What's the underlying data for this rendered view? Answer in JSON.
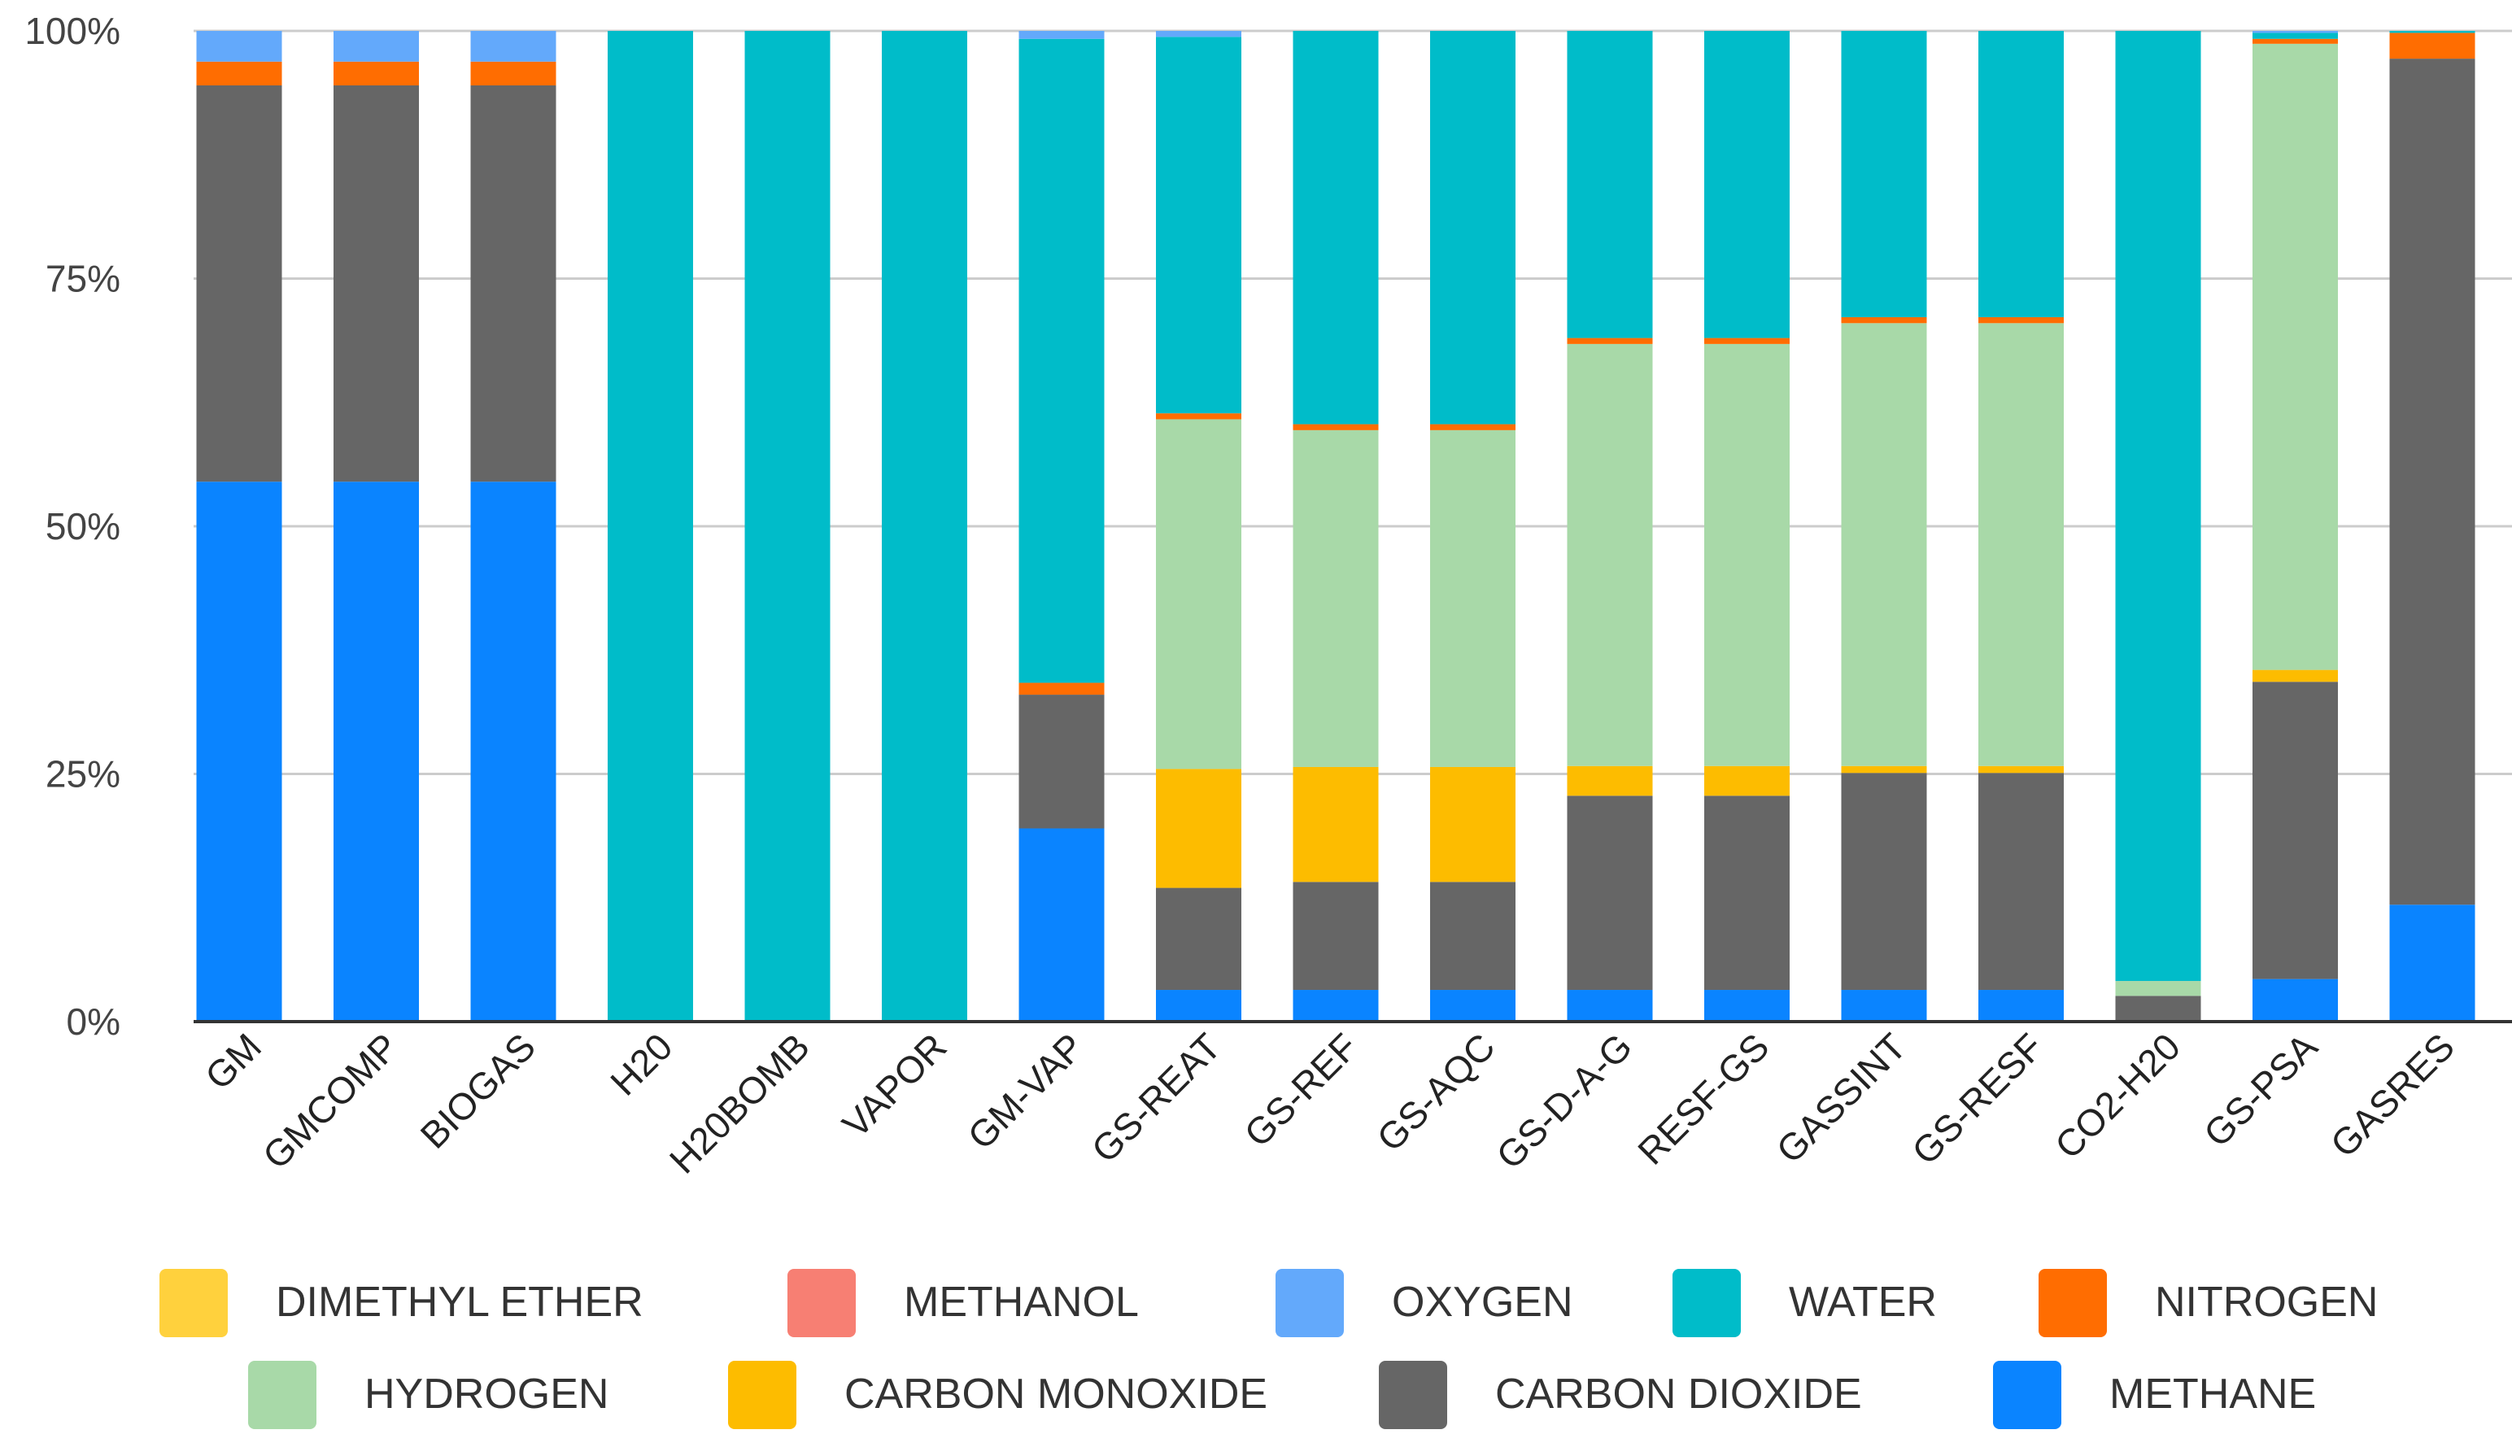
{
  "chart_data": {
    "type": "bar",
    "stacked": true,
    "normalized": true,
    "title": "",
    "xlabel": "",
    "ylabel": "",
    "ylim": [
      0,
      100
    ],
    "y_ticks": [
      0,
      25,
      50,
      75,
      100
    ],
    "y_tick_labels": [
      "0%",
      "25%",
      "50%",
      "75%",
      "100%"
    ],
    "grid": true,
    "legend_position": "bottom",
    "categories": [
      "GM",
      "GMCOMP",
      "BIOGAS",
      "H20",
      "H20BOMB",
      "VAPOR",
      "GM-VAP",
      "GS-REAT",
      "GS-REF",
      "GS-AQC",
      "GS-D-A-G",
      "RESF-GS",
      "GASSINT",
      "GS-RESF",
      "CO2-H20",
      "GS-PSA",
      "GASRES"
    ],
    "series": [
      {
        "name": "METHANE",
        "color": "#0a84ff",
        "values": [
          54.5,
          54.5,
          54.5,
          0,
          0,
          0,
          19.5,
          3.2,
          3.2,
          3.2,
          3.2,
          3.2,
          3.2,
          3.2,
          0,
          4.3,
          11.8
        ]
      },
      {
        "name": "CARBON DIOXIDE",
        "color": "#666666",
        "values": [
          40.0,
          40.0,
          40.0,
          0,
          0,
          0,
          13.5,
          10.3,
          10.9,
          10.9,
          19.6,
          19.6,
          21.9,
          21.9,
          2.6,
          30.0,
          85.4
        ]
      },
      {
        "name": "CARBON MONOXIDE",
        "color": "#fdbc00",
        "values": [
          0,
          0,
          0,
          0,
          0,
          0,
          0,
          12.0,
          11.6,
          11.6,
          3.0,
          3.0,
          0.7,
          0.7,
          0,
          1.2,
          0
        ]
      },
      {
        "name": "HYDROGEN",
        "color": "#a8d9a8",
        "values": [
          0,
          0,
          0,
          0,
          0,
          0,
          0,
          35.3,
          34.0,
          34.0,
          42.6,
          42.6,
          44.7,
          44.7,
          1.5,
          63.2,
          0
        ]
      },
      {
        "name": "NITROGEN",
        "color": "#ff6d01",
        "values": [
          2.4,
          2.4,
          2.4,
          0,
          0,
          0,
          1.2,
          0.6,
          0.6,
          0.6,
          0.6,
          0.6,
          0.6,
          0.6,
          0,
          0.5,
          2.6
        ]
      },
      {
        "name": "WATER",
        "color": "#00bcc9",
        "values": [
          0,
          0,
          0,
          100,
          100,
          100,
          65.0,
          38.0,
          39.7,
          39.7,
          31.0,
          31.0,
          28.9,
          28.9,
          95.9,
          0.6,
          0.2
        ]
      },
      {
        "name": "OXYGEN",
        "color": "#63a9fb",
        "values": [
          3.1,
          3.1,
          3.1,
          0,
          0,
          0,
          0.8,
          0.6,
          0,
          0,
          0,
          0,
          0,
          0,
          0,
          0.2,
          0
        ]
      },
      {
        "name": "METHANOL",
        "color": "#f77f73",
        "values": [
          0,
          0,
          0,
          0,
          0,
          0,
          0,
          0,
          0,
          0,
          0,
          0,
          0,
          0,
          0,
          0,
          0
        ]
      },
      {
        "name": "DIMETHYL ETHER",
        "color": "#ffd13d",
        "values": [
          0,
          0,
          0,
          0,
          0,
          0,
          0,
          0,
          0,
          0,
          0,
          0,
          0,
          0,
          0,
          0,
          0
        ]
      }
    ],
    "legend_rows": [
      [
        "DIMETHYL ETHER",
        "METHANOL",
        "OXYGEN",
        "WATER",
        "NITROGEN"
      ],
      [
        "HYDROGEN",
        "CARBON MONOXIDE",
        "CARBON DIOXIDE",
        "METHANE"
      ]
    ]
  }
}
